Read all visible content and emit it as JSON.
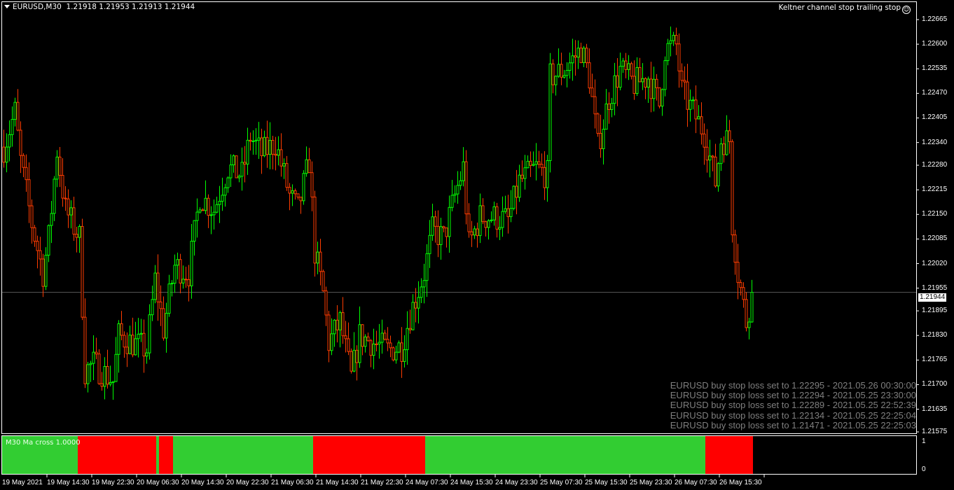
{
  "header": {
    "symbol_timeframe": "EURUSD,M30",
    "ohlc": "1.21918 1.21953 1.21913 1.21944"
  },
  "expert": {
    "name": "Keltner channel stop trailing stop",
    "icon": "smiley-icon"
  },
  "current_price": "1.21944",
  "colors": {
    "bull": "#00ff00",
    "bear": "#ff3c00",
    "indicator_up": "#32cd32",
    "indicator_down": "#ff0000",
    "grid_line": "#5a5a5a",
    "message_text": "#7f7f7f"
  },
  "price_axis": {
    "max": 1.22665,
    "min": 1.21575,
    "labels": [
      "1.22665",
      "1.22600",
      "1.22535",
      "1.22470",
      "1.22405",
      "1.22340",
      "1.22280",
      "1.22215",
      "1.22150",
      "1.22085",
      "1.22020",
      "1.21955",
      "1.21895",
      "1.21830",
      "1.21765",
      "1.21700",
      "1.21635",
      "1.21575"
    ]
  },
  "time_axis": {
    "labels": [
      "19 May 2021",
      "19 May 14:30",
      "19 May 22:30",
      "20 May 06:30",
      "20 May 14:30",
      "20 May 22:30",
      "21 May 06:30",
      "21 May 14:30",
      "21 May 22:30",
      "24 May 07:30",
      "24 May 15:30",
      "24 May 23:30",
      "25 May 07:30",
      "25 May 15:30",
      "25 May 23:30",
      "26 May 07:30",
      "26 May 15:30"
    ]
  },
  "price_path": [
    [
      0,
      1.22328
    ],
    [
      4,
      1.22421
    ],
    [
      6,
      1.22291
    ],
    [
      10,
      1.22125
    ],
    [
      14,
      1.21995
    ],
    [
      16,
      1.22088
    ],
    [
      19,
      1.22319
    ],
    [
      22,
      1.22162
    ],
    [
      27,
      1.22088
    ],
    [
      29,
      1.21736
    ],
    [
      32,
      1.21755
    ],
    [
      39,
      1.21709
    ],
    [
      41,
      1.21829
    ],
    [
      46,
      1.2181
    ],
    [
      51,
      1.21792
    ],
    [
      54,
      1.21977
    ],
    [
      57,
      1.21847
    ],
    [
      61,
      1.22014
    ],
    [
      66,
      1.21995
    ],
    [
      70,
      1.22199
    ],
    [
      75,
      1.22162
    ],
    [
      80,
      1.22273
    ],
    [
      85,
      1.22254
    ],
    [
      88,
      1.22356
    ],
    [
      92,
      1.2231
    ],
    [
      97,
      1.22338
    ],
    [
      102,
      1.22199
    ],
    [
      105,
      1.22162
    ],
    [
      109,
      1.22291
    ],
    [
      111,
      1.22051
    ],
    [
      114,
      1.2194
    ],
    [
      116,
      1.2181
    ],
    [
      120,
      1.21866
    ],
    [
      124,
      1.21718
    ],
    [
      127,
      1.21829
    ],
    [
      132,
      1.2181
    ],
    [
      137,
      1.21792
    ],
    [
      142,
      1.21801
    ],
    [
      145,
      1.21884
    ],
    [
      150,
      1.21995
    ],
    [
      153,
      1.22106
    ],
    [
      157,
      1.22088
    ],
    [
      161,
      1.22199
    ],
    [
      164,
      1.22273
    ],
    [
      166,
      1.22069
    ],
    [
      170,
      1.22143
    ],
    [
      175,
      1.22143
    ],
    [
      180,
      1.22134
    ],
    [
      184,
      1.22236
    ],
    [
      190,
      1.22273
    ],
    [
      194,
      1.22254
    ],
    [
      195,
      1.22513
    ],
    [
      200,
      1.22532
    ],
    [
      206,
      1.22587
    ],
    [
      209,
      1.22513
    ],
    [
      212,
      1.22328
    ],
    [
      216,
      1.22458
    ],
    [
      220,
      1.22532
    ],
    [
      225,
      1.22495
    ],
    [
      230,
      1.22513
    ],
    [
      234,
      1.22439
    ],
    [
      236,
      1.22587
    ],
    [
      240,
      1.22597
    ],
    [
      242,
      1.22476
    ],
    [
      246,
      1.22421
    ],
    [
      250,
      1.22365
    ],
    [
      254,
      1.22236
    ],
    [
      256,
      1.22347
    ],
    [
      259,
      1.22347
    ],
    [
      260,
      1.22125
    ],
    [
      262,
      1.21995
    ],
    [
      265,
      1.21866
    ],
    [
      267,
      1.21944
    ]
  ],
  "indicator": {
    "label": "M30 Ma cross 1.0000",
    "scale_labels": [
      "1",
      "0"
    ],
    "segments": [
      {
        "from_bar": 0,
        "to_bar": 27,
        "value": 1
      },
      {
        "from_bar": 27,
        "to_bar": 55,
        "value": 0
      },
      {
        "from_bar": 55,
        "to_bar": 56,
        "value": 1
      },
      {
        "from_bar": 56,
        "to_bar": 61,
        "value": 0
      },
      {
        "from_bar": 61,
        "to_bar": 111,
        "value": 1
      },
      {
        "from_bar": 111,
        "to_bar": 151,
        "value": 0
      },
      {
        "from_bar": 151,
        "to_bar": 251,
        "value": 1
      },
      {
        "from_bar": 251,
        "to_bar": 268,
        "value": 0
      }
    ]
  },
  "messages": [
    "EURUSD buy stop loss set to 1.22295 - 2021.05.26 00:30:00",
    "EURUSD buy stop loss set to 1.22294 - 2021.05.25 23:30:00",
    "EURUSD buy stop loss set to 1.22289 - 2021.05.25 22:52:39",
    "EURUSD buy stop loss set to 1.22134 - 2021.05.25 22:25:04",
    "EURUSD buy stop loss set to 1.21471 - 2021.05.25 22:25:03"
  ]
}
